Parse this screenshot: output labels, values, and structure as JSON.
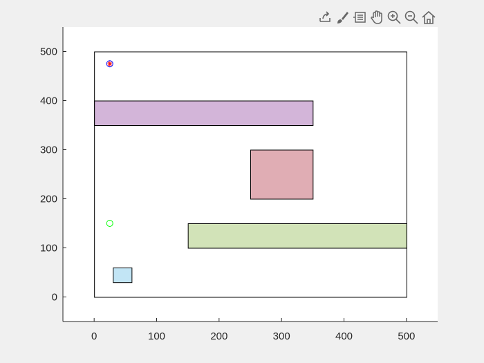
{
  "toolbar": {
    "icons": [
      "export-icon",
      "brush-icon",
      "data-tips-icon",
      "pan-icon",
      "zoom-in-icon",
      "zoom-out-icon",
      "home-icon"
    ]
  },
  "colors": {
    "figure_background": "#f0f0f0",
    "axes_background": "#ffffff",
    "axis_color": "#262626",
    "toolbar_icon": "#666666"
  },
  "chart_data": {
    "type": "scatter",
    "title": "",
    "xlabel": "",
    "ylabel": "",
    "xlim": [
      -50,
      550
    ],
    "ylim": [
      -50,
      550
    ],
    "grid": false,
    "xticks": [
      0,
      100,
      200,
      300,
      400,
      500
    ],
    "yticks": [
      0,
      100,
      200,
      300,
      400,
      500
    ],
    "rectangles": [
      {
        "name": "boundary",
        "x": 0,
        "y": 0,
        "width": 500,
        "height": 500,
        "fill": "none",
        "stroke": "#000000"
      },
      {
        "name": "obstacle-purple",
        "x": 0,
        "y": 350,
        "width": 350,
        "height": 50,
        "fill": "#d3b5d9",
        "stroke": "#000000"
      },
      {
        "name": "obstacle-red",
        "x": 250,
        "y": 200,
        "width": 100,
        "height": 100,
        "fill": "#e0adb4",
        "stroke": "#000000"
      },
      {
        "name": "obstacle-green",
        "x": 150,
        "y": 100,
        "width": 350,
        "height": 50,
        "fill": "#d2e3b8",
        "stroke": "#000000"
      },
      {
        "name": "obstacle-blue",
        "x": 30,
        "y": 30,
        "width": 30,
        "height": 30,
        "fill": "#c2e5f5",
        "stroke": "#000000"
      }
    ],
    "points": [
      {
        "name": "start-point",
        "x": 25,
        "y": 150,
        "marker": "circle",
        "color": "#00ff00"
      },
      {
        "name": "goal-circle",
        "x": 25,
        "y": 475,
        "marker": "circle",
        "color": "#0000ff"
      },
      {
        "name": "goal-star",
        "x": 25,
        "y": 475,
        "marker": "star",
        "color": "#ff0000"
      }
    ]
  }
}
